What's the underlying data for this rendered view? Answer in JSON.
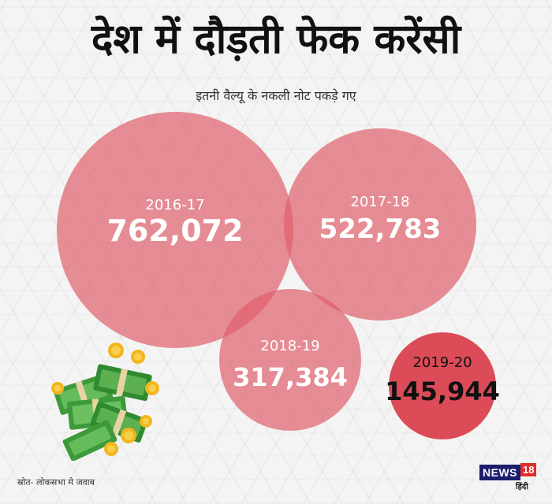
{
  "title": "देश में दौड़ती फेक करेंसी",
  "subtitle": "इतनी वैल्यू के नकली नोट पकड़े गए",
  "source": "स्रोत- लोकसभा मे जवाब",
  "brand": {
    "name": "NEWS",
    "number": "18",
    "lang": "हिंदी"
  },
  "colors": {
    "bubble": "#e0606c",
    "bubble_dark": "#d9414f",
    "label": "#ffffff",
    "value_dark": "#111111"
  },
  "chart_data": {
    "type": "bubble",
    "title": "देश में दौड़ती फेक करेंसी",
    "subtitle": "इतनी वैल्यू के नकली नोट पकड़े गए",
    "categories": [
      "2016-17",
      "2017-18",
      "2018-19",
      "2019-20"
    ],
    "values": [
      762072,
      522783,
      317384,
      145944
    ],
    "value_labels": [
      "762,072",
      "522,783",
      "317,384",
      "145,944"
    ]
  }
}
